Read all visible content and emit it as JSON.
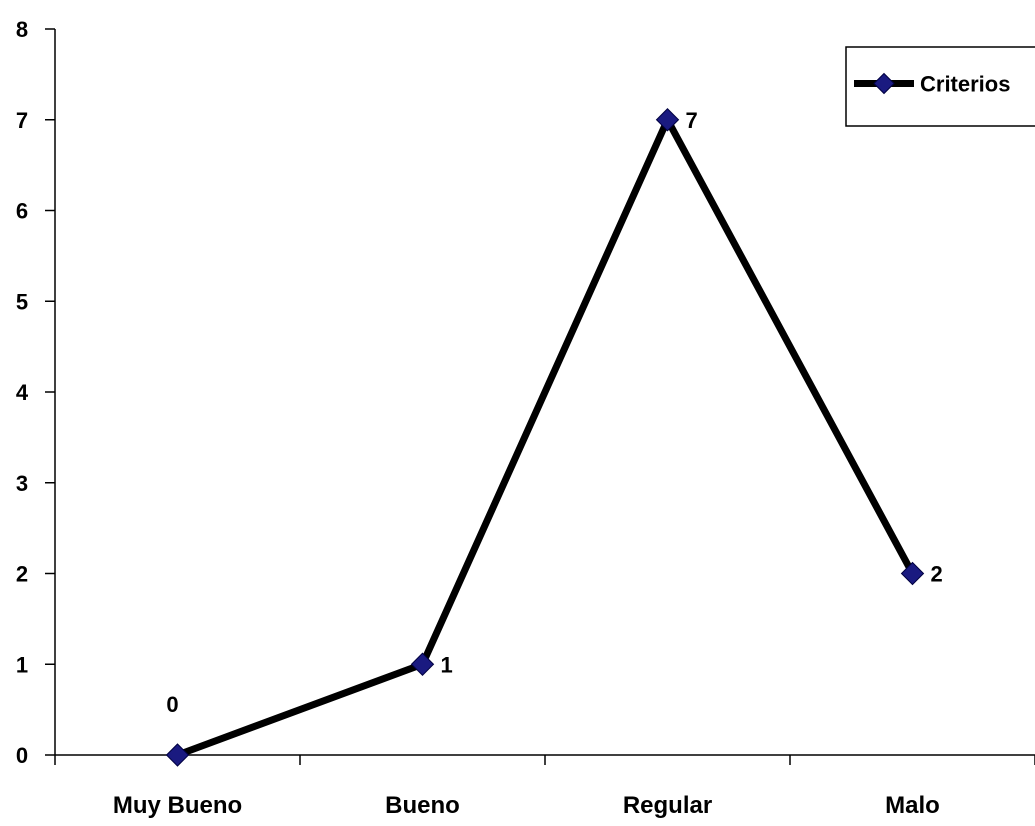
{
  "chart_data": {
    "type": "line",
    "categories": [
      "Muy Bueno",
      "Bueno",
      "Regular",
      "Malo"
    ],
    "series": [
      {
        "name": "Criterios",
        "values": [
          0,
          1,
          7,
          2
        ]
      }
    ],
    "ylim": [
      0,
      8
    ],
    "yticks": [
      0,
      1,
      2,
      3,
      4,
      5,
      6,
      7,
      8
    ],
    "ytick_labels": [
      "0",
      "1",
      "2",
      "3",
      "4",
      "5",
      "6",
      "7",
      "8"
    ],
    "data_labels": [
      "0",
      "1",
      "7",
      "2"
    ],
    "grid": false,
    "legend_position": "top-right",
    "colors": {
      "line": "#000000",
      "marker": "#1a1a80",
      "marker_stroke": "#000040",
      "axis": "#000000"
    },
    "marker": "diamond"
  }
}
